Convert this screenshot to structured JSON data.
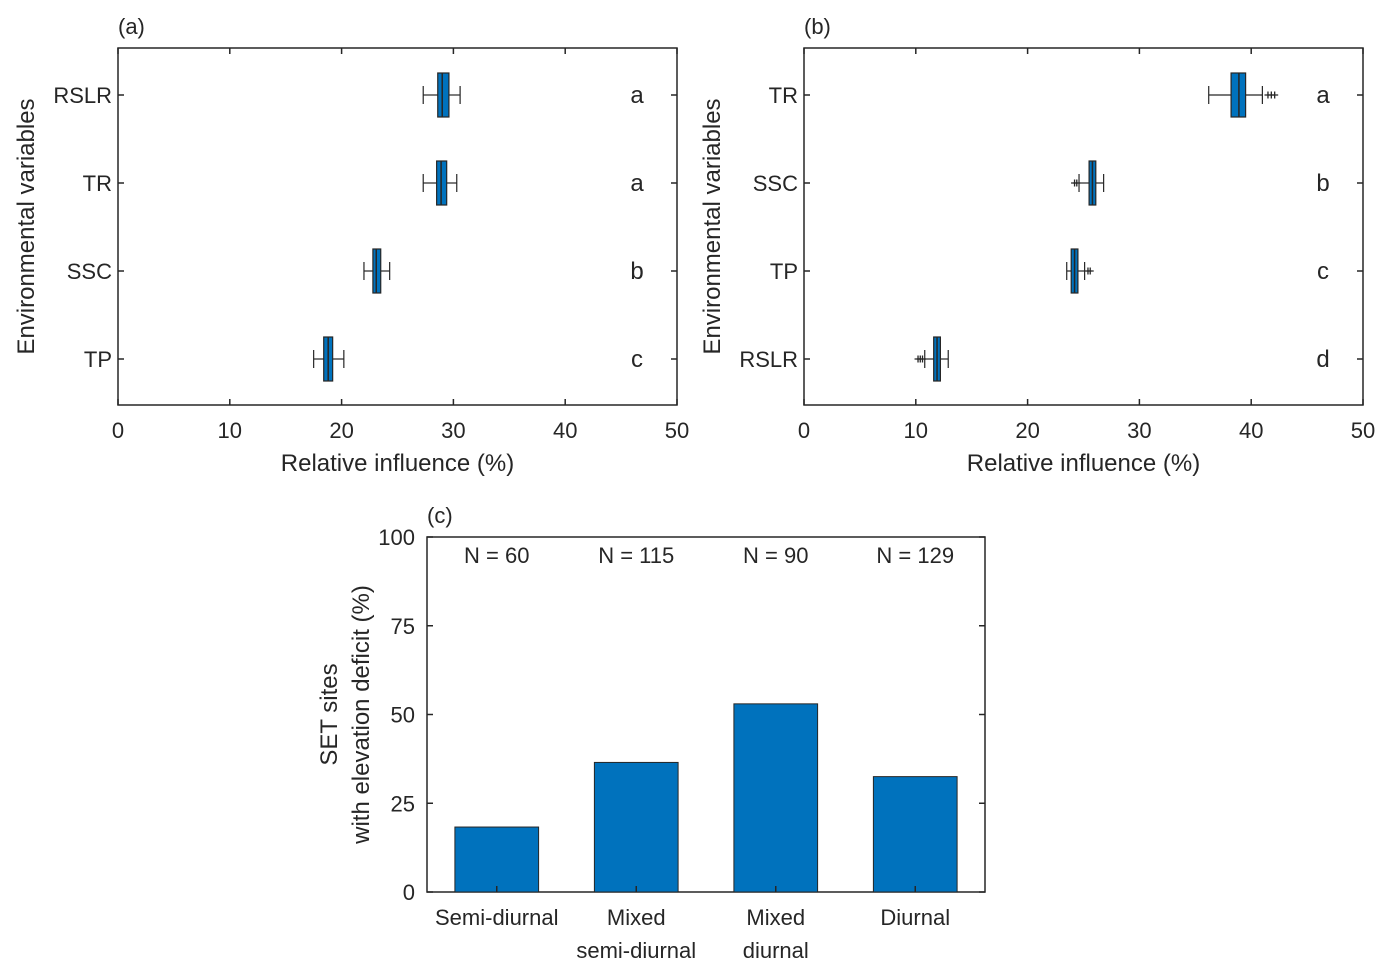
{
  "chart_data": [
    {
      "type": "box",
      "panel_label": "(a)",
      "xlabel": "Relative influence (%)",
      "ylabel": "Environmental variables",
      "xlim": [
        0,
        50
      ],
      "xticks": [
        "0",
        "10",
        "20",
        "30",
        "40",
        "50"
      ],
      "grid": false,
      "boxes": [
        {
          "category": "RSLR",
          "letter": "a",
          "whisker_low": 27.3,
          "q1": 28.6,
          "median": 29.0,
          "q3": 29.6,
          "whisker_high": 30.6,
          "outliers": []
        },
        {
          "category": "TR",
          "letter": "a",
          "whisker_low": 27.3,
          "q1": 28.5,
          "median": 28.9,
          "q3": 29.4,
          "whisker_high": 30.3,
          "outliers": []
        },
        {
          "category": "SSC",
          "letter": "b",
          "whisker_low": 22.0,
          "q1": 22.8,
          "median": 23.1,
          "q3": 23.5,
          "whisker_high": 24.3,
          "outliers": []
        },
        {
          "category": "TP",
          "letter": "c",
          "whisker_low": 17.5,
          "q1": 18.4,
          "median": 18.8,
          "q3": 19.2,
          "whisker_high": 20.2,
          "outliers": []
        }
      ]
    },
    {
      "type": "box",
      "panel_label": "(b)",
      "xlabel": "Relative influence (%)",
      "ylabel": "Environmental variables",
      "xlim": [
        0,
        50
      ],
      "xticks": [
        "0",
        "10",
        "20",
        "30",
        "40",
        "50"
      ],
      "grid": false,
      "boxes": [
        {
          "category": "TR",
          "letter": "a",
          "whisker_low": 36.2,
          "q1": 38.2,
          "median": 38.9,
          "q3": 39.5,
          "whisker_high": 41.0,
          "outliers": [
            41.5,
            41.8,
            42.1
          ]
        },
        {
          "category": "SSC",
          "letter": "b",
          "whisker_low": 24.6,
          "q1": 25.5,
          "median": 25.8,
          "q3": 26.1,
          "whisker_high": 26.8,
          "outliers": [
            24.2,
            24.4
          ]
        },
        {
          "category": "TP",
          "letter": "c",
          "whisker_low": 23.5,
          "q1": 23.9,
          "median": 24.2,
          "q3": 24.5,
          "whisker_high": 25.1,
          "outliers": [
            25.4,
            25.6
          ]
        },
        {
          "category": "RSLR",
          "letter": "d",
          "whisker_low": 10.8,
          "q1": 11.6,
          "median": 11.9,
          "q3": 12.2,
          "whisker_high": 12.9,
          "outliers": [
            10.2,
            10.4,
            10.6
          ]
        }
      ]
    },
    {
      "type": "bar",
      "panel_label": "(c)",
      "xlabel": "",
      "ylabel_line1": "SET sites",
      "ylabel_line2": "with elevation deficit (%)",
      "ylim": [
        0,
        100
      ],
      "yticks": [
        "0",
        "25",
        "50",
        "75",
        "100"
      ],
      "grid": false,
      "categories": [
        {
          "line1": "Semi-diurnal",
          "line2": ""
        },
        {
          "line1": "Mixed",
          "line2": "semi-diurnal"
        },
        {
          "line1": "Mixed",
          "line2": "diurnal"
        },
        {
          "line1": "Diurnal",
          "line2": ""
        }
      ],
      "values": [
        18.3,
        36.5,
        53.0,
        32.5
      ],
      "n_labels": [
        "N = 60",
        "N = 115",
        "N = 90",
        "N = 129"
      ],
      "bar_color": "#0072bd"
    }
  ]
}
